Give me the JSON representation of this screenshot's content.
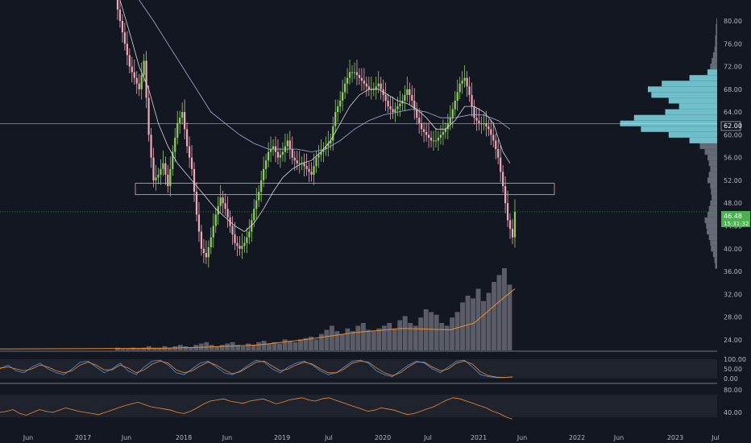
{
  "chart_data": {
    "type": "candlestick",
    "interval": "weekly",
    "colors": {
      "background": "#131722",
      "up": "#8fcf5c",
      "down": "#f0a8b8",
      "ma_fast": "#d8d8d8",
      "ma_slow": "#a9a9d8",
      "volume": "#9598a1",
      "volume_ma": "#f28a2e",
      "profile_high": "#7fdde6",
      "profile_low": "#b7bfc9",
      "zone": "#e8a0b0",
      "price_tag": "#4caf50",
      "stoch_k": "#4a90e2",
      "stoch_d": "#f28a2e",
      "rsi": "#f28a2e",
      "pane_band": "#2a2e39"
    },
    "price_axis": {
      "range": [
        22,
        84
      ],
      "ticks": [
        "80.00",
        "76.00",
        "72.00",
        "68.00",
        "64.00",
        "60.00",
        "56.00",
        "52.00",
        "48.00",
        "44.00",
        "40.00",
        "36.00",
        "32.00",
        "28.00",
        "24.00"
      ]
    },
    "time_axis": {
      "ticks": [
        "Jun",
        "2017",
        "Jun",
        "2018",
        "Jun",
        "2019",
        "Jul",
        "2020",
        "Jul",
        "2021",
        "Jun",
        "2022",
        "Jun",
        "2023",
        "Jul"
      ]
    },
    "horizontal_level": 62.0,
    "horizontal_level_label": "62.00",
    "last_price": "46.48",
    "countdown": "15:31:32",
    "zone": {
      "low": 49.5,
      "high": 51.5
    },
    "price_path": [
      [
        0,
        84
      ],
      [
        6,
        72
      ],
      [
        8,
        70
      ],
      [
        10,
        68
      ],
      [
        12,
        73
      ],
      [
        14,
        60
      ],
      [
        16,
        52
      ],
      [
        18,
        53
      ],
      [
        20,
        55
      ],
      [
        22,
        51
      ],
      [
        24,
        57
      ],
      [
        26,
        62
      ],
      [
        28,
        64
      ],
      [
        30,
        58
      ],
      [
        32,
        54
      ],
      [
        34,
        46
      ],
      [
        36,
        40
      ],
      [
        38,
        38.5
      ],
      [
        40,
        42
      ],
      [
        42,
        46
      ],
      [
        44,
        49
      ],
      [
        46,
        47
      ],
      [
        48,
        44
      ],
      [
        50,
        41
      ],
      [
        52,
        40
      ],
      [
        54,
        41
      ],
      [
        56,
        43
      ],
      [
        58,
        47
      ],
      [
        60,
        50
      ],
      [
        62,
        54
      ],
      [
        64,
        57
      ],
      [
        66,
        58
      ],
      [
        68,
        56
      ],
      [
        70,
        57
      ],
      [
        72,
        59
      ],
      [
        74,
        56
      ],
      [
        76,
        55
      ],
      [
        78,
        55
      ],
      [
        80,
        54
      ],
      [
        82,
        53
      ],
      [
        84,
        56
      ],
      [
        86,
        57
      ],
      [
        88,
        58
      ],
      [
        90,
        59
      ],
      [
        92,
        64
      ],
      [
        94,
        66
      ],
      [
        96,
        69
      ],
      [
        98,
        71
      ],
      [
        100,
        71
      ],
      [
        102,
        70
      ],
      [
        104,
        69
      ],
      [
        106,
        68
      ],
      [
        108,
        68
      ],
      [
        110,
        69
      ],
      [
        112,
        67
      ],
      [
        114,
        65
      ],
      [
        116,
        64
      ],
      [
        118,
        65
      ],
      [
        120,
        66
      ],
      [
        122,
        68
      ],
      [
        124,
        66
      ],
      [
        126,
        63
      ],
      [
        128,
        61
      ],
      [
        130,
        60
      ],
      [
        132,
        59
      ],
      [
        134,
        59
      ],
      [
        136,
        60
      ],
      [
        138,
        61
      ],
      [
        140,
        63
      ],
      [
        142,
        66
      ],
      [
        144,
        69
      ],
      [
        146,
        70
      ],
      [
        148,
        67
      ],
      [
        150,
        63
      ],
      [
        152,
        62
      ],
      [
        154,
        62
      ],
      [
        156,
        61
      ],
      [
        158,
        59
      ],
      [
        160,
        56
      ],
      [
        162,
        51
      ],
      [
        164,
        45
      ],
      [
        166,
        42
      ],
      [
        167,
        46.48
      ]
    ],
    "ma_fast": [
      [
        2,
        84
      ],
      [
        6,
        78
      ],
      [
        10,
        72
      ],
      [
        14,
        68
      ],
      [
        18,
        62
      ],
      [
        22,
        58
      ],
      [
        26,
        55
      ],
      [
        30,
        53
      ],
      [
        34,
        51
      ],
      [
        38,
        49
      ],
      [
        42,
        47
      ],
      [
        46,
        45.5
      ],
      [
        50,
        44
      ],
      [
        54,
        43
      ],
      [
        58,
        44.5
      ],
      [
        62,
        47
      ],
      [
        66,
        50
      ],
      [
        70,
        52.5
      ],
      [
        74,
        54
      ],
      [
        78,
        55
      ],
      [
        82,
        55.5
      ],
      [
        86,
        57
      ],
      [
        90,
        59
      ],
      [
        94,
        62
      ],
      [
        98,
        65
      ],
      [
        102,
        67
      ],
      [
        106,
        68
      ],
      [
        110,
        68
      ],
      [
        114,
        67
      ],
      [
        118,
        66
      ],
      [
        122,
        65.5
      ],
      [
        126,
        64.5
      ],
      [
        130,
        63
      ],
      [
        134,
        61
      ],
      [
        138,
        61
      ],
      [
        142,
        62.5
      ],
      [
        146,
        65
      ],
      [
        150,
        65
      ],
      [
        154,
        64
      ],
      [
        158,
        62
      ],
      [
        162,
        57
      ],
      [
        165,
        55
      ]
    ],
    "ma_slow": [
      [
        10,
        84
      ],
      [
        16,
        80
      ],
      [
        22,
        76
      ],
      [
        28,
        72
      ],
      [
        34,
        68
      ],
      [
        40,
        64
      ],
      [
        46,
        62
      ],
      [
        52,
        60
      ],
      [
        58,
        58.5
      ],
      [
        64,
        57.5
      ],
      [
        70,
        57.5
      ],
      [
        76,
        57.5
      ],
      [
        82,
        57
      ],
      [
        88,
        57.5
      ],
      [
        94,
        59
      ],
      [
        100,
        61
      ],
      [
        106,
        62.5
      ],
      [
        112,
        63.5
      ],
      [
        118,
        64
      ],
      [
        124,
        64.5
      ],
      [
        130,
        64
      ],
      [
        136,
        63
      ],
      [
        142,
        63
      ],
      [
        148,
        63.5
      ],
      [
        154,
        63.5
      ],
      [
        160,
        62.5
      ],
      [
        165,
        61
      ]
    ],
    "volume": [
      2,
      1,
      1,
      2,
      1,
      2,
      3,
      2,
      2,
      3,
      2,
      3,
      4,
      3,
      2,
      4,
      5,
      6,
      4,
      3,
      4,
      5,
      6,
      4,
      3,
      5,
      4,
      6,
      7,
      5,
      6,
      5,
      8,
      7,
      6,
      8,
      9,
      10,
      8,
      12,
      15,
      18,
      14,
      12,
      16,
      14,
      18,
      20,
      15,
      14,
      16,
      18,
      20,
      16,
      22,
      25,
      20,
      18,
      24,
      30,
      28,
      26,
      20,
      18,
      24,
      28,
      35,
      40,
      38,
      45,
      36,
      42,
      50,
      55,
      60,
      48
    ],
    "volume_ma": [
      [
        0,
        1
      ],
      [
        20,
        1.5
      ],
      [
        40,
        2.5
      ],
      [
        60,
        4
      ],
      [
        80,
        8
      ],
      [
        100,
        13
      ],
      [
        120,
        16
      ],
      [
        140,
        15
      ],
      [
        150,
        20
      ],
      [
        160,
        35
      ],
      [
        167,
        45
      ]
    ],
    "volume_profile": [
      [
        80,
        1
      ],
      [
        79,
        2
      ],
      [
        78,
        2
      ],
      [
        77,
        3
      ],
      [
        76,
        3
      ],
      [
        75,
        4
      ],
      [
        74,
        6
      ],
      [
        73,
        8
      ],
      [
        72,
        10
      ],
      [
        71,
        14
      ],
      [
        70,
        40
      ],
      [
        69,
        80
      ],
      [
        68,
        100
      ],
      [
        67,
        95
      ],
      [
        66,
        70
      ],
      [
        65,
        55
      ],
      [
        64,
        75
      ],
      [
        63,
        120
      ],
      [
        62,
        140
      ],
      [
        61,
        110
      ],
      [
        60,
        70
      ],
      [
        59,
        40
      ],
      [
        58,
        25
      ],
      [
        57,
        18
      ],
      [
        56,
        14
      ],
      [
        55,
        12
      ],
      [
        54,
        10
      ],
      [
        53,
        12
      ],
      [
        52,
        14
      ],
      [
        51,
        10
      ],
      [
        50,
        9
      ],
      [
        49,
        8
      ],
      [
        48,
        10
      ],
      [
        47,
        12
      ],
      [
        46,
        14
      ],
      [
        45,
        18
      ],
      [
        44,
        16
      ],
      [
        43,
        15
      ],
      [
        42,
        12
      ],
      [
        41,
        10
      ],
      [
        40,
        9
      ],
      [
        39,
        6
      ],
      [
        38,
        4
      ],
      [
        37,
        3
      ]
    ],
    "volume_profile_value_area": [
      59,
      71
    ],
    "stoch_axis": {
      "ticks": [
        "100.00",
        "50.00",
        "0.00"
      ],
      "band": [
        20,
        80
      ]
    },
    "stoch_k": [
      50,
      70,
      40,
      30,
      60,
      80,
      50,
      30,
      20,
      50,
      85,
      90,
      60,
      30,
      50,
      80,
      40,
      20,
      60,
      90,
      95,
      70,
      30,
      20,
      50,
      80,
      90,
      60,
      30,
      20,
      40,
      70,
      95,
      85,
      50,
      30,
      60,
      80,
      90,
      70,
      40,
      20,
      30,
      60,
      90,
      95,
      80,
      40,
      20,
      10,
      40,
      70,
      90,
      80,
      50,
      30,
      60,
      90,
      95,
      60,
      20,
      10,
      5,
      5,
      10
    ],
    "stoch_d": [
      55,
      60,
      50,
      40,
      50,
      70,
      60,
      40,
      30,
      40,
      70,
      85,
      70,
      45,
      45,
      70,
      55,
      30,
      45,
      75,
      90,
      80,
      45,
      30,
      40,
      65,
      85,
      70,
      45,
      25,
      35,
      60,
      85,
      90,
      65,
      40,
      50,
      70,
      85,
      75,
      50,
      30,
      30,
      50,
      80,
      90,
      85,
      55,
      30,
      15,
      30,
      60,
      85,
      85,
      60,
      40,
      50,
      80,
      90,
      75,
      35,
      15,
      8,
      6,
      8
    ],
    "rsi_axis": {
      "ticks": [
        "80.00",
        "40.00"
      ],
      "band": [
        30,
        70
      ]
    },
    "rsi": [
      40,
      42,
      45,
      38,
      35,
      40,
      45,
      42,
      40,
      44,
      48,
      45,
      42,
      40,
      38,
      36,
      40,
      44,
      48,
      52,
      55,
      58,
      54,
      50,
      48,
      46,
      44,
      40,
      38,
      42,
      48,
      55,
      60,
      62,
      64,
      60,
      58,
      56,
      60,
      62,
      64,
      60,
      55,
      58,
      62,
      64,
      66,
      62,
      60,
      64,
      66,
      62,
      58,
      54,
      50,
      46,
      42,
      44,
      48,
      46,
      44,
      40,
      36,
      38,
      42,
      46,
      50,
      56,
      62,
      66,
      64,
      60,
      56,
      52,
      48,
      42,
      38,
      32,
      28
    ]
  }
}
